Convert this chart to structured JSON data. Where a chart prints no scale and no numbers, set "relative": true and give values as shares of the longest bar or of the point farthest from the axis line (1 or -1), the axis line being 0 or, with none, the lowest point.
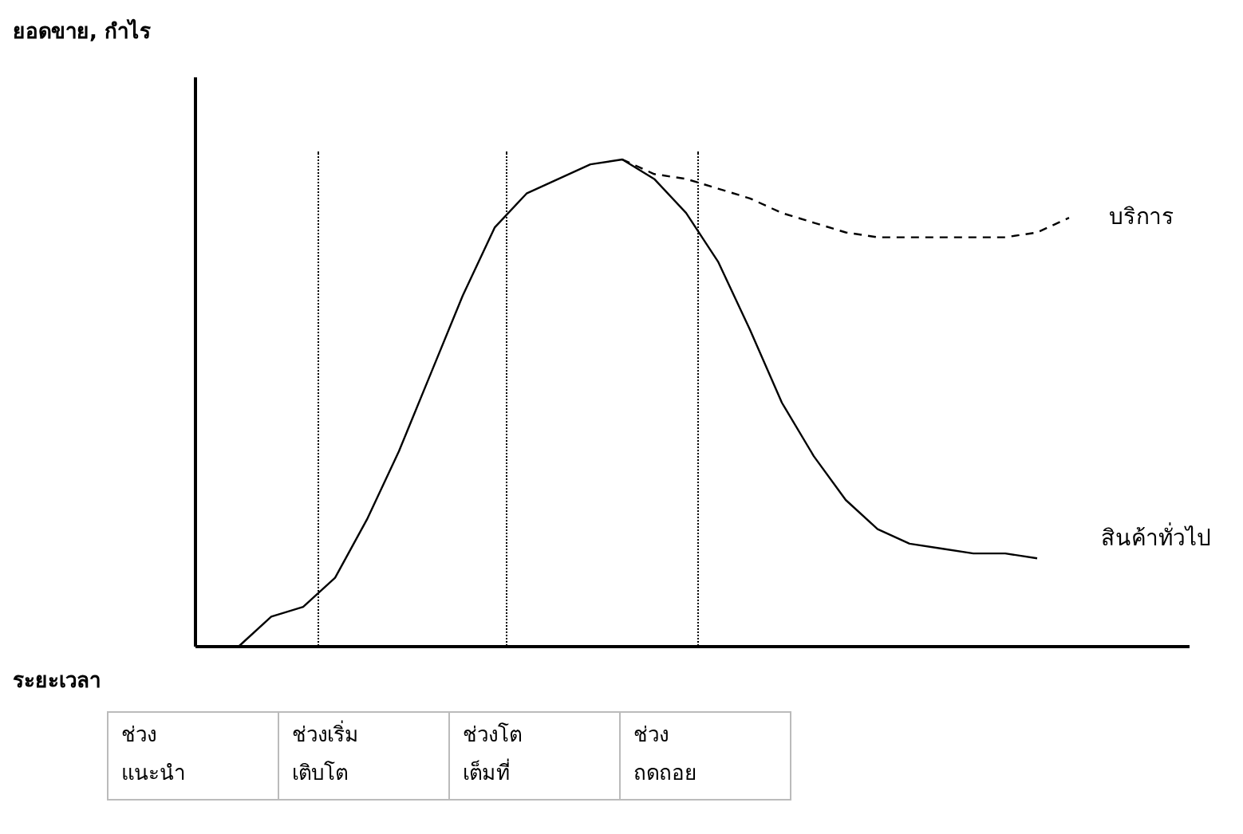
{
  "chart_data": {
    "type": "line",
    "relative": true,
    "categories": [
      null,
      null,
      null,
      null,
      null,
      null,
      null,
      null,
      null,
      null,
      null,
      null,
      null,
      null,
      null,
      null,
      null,
      null,
      null,
      null,
      null,
      null,
      null,
      null,
      null,
      null,
      null
    ],
    "series": [
      {
        "name": "สินค้าทั่วไป",
        "color": "#000000",
        "line_style": "solid",
        "values": [
          0,
          0.06,
          0.08,
          0.14,
          0.26,
          0.4,
          0.56,
          0.72,
          0.86,
          0.93,
          0.96,
          0.99,
          1,
          0.96,
          0.89,
          0.79,
          0.65,
          0.5,
          0.39,
          0.3,
          0.24,
          0.21,
          0.2,
          0.19,
          0.19,
          0.18,
          null
        ]
      },
      {
        "name": "บริการ",
        "color": "#000000",
        "line_style": "dashed",
        "values": [
          null,
          null,
          null,
          null,
          null,
          null,
          null,
          null,
          null,
          null,
          null,
          null,
          1,
          0.97,
          0.96,
          0.94,
          0.92,
          0.89,
          0.87,
          0.85,
          0.84,
          0.84,
          0.84,
          0.84,
          0.84,
          0.85,
          0.88
        ]
      }
    ],
    "annotations": [
      "ยอดขาย, กำไร",
      "ระยะเวลา",
      "ช่วง\nแนะนำ",
      "ช่วงเริ่ม\nเติบโต",
      "ช่วงโต\nเต็มที่",
      "ช่วง\nถดถอย"
    ]
  }
}
